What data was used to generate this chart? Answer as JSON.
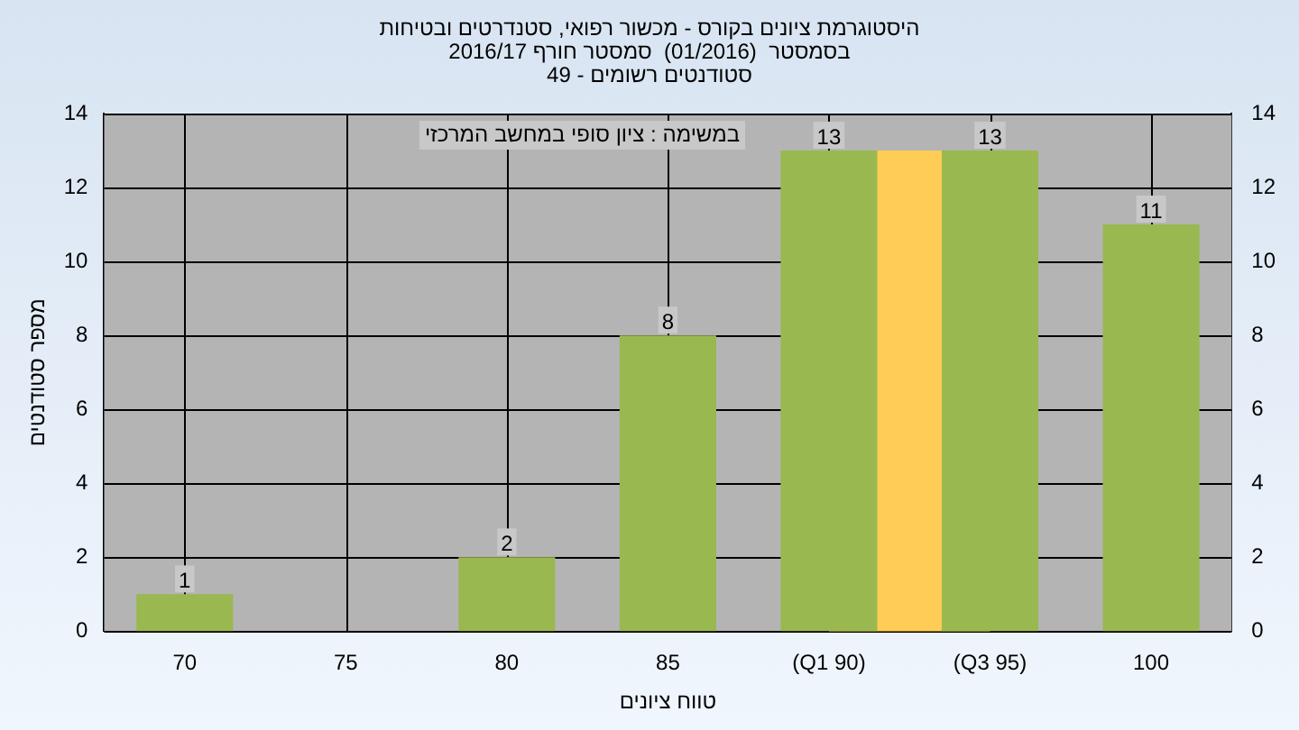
{
  "chart_data": {
    "type": "bar",
    "title": "היסטוגרמת ציונים בקורס - מכשור רפואי, סטנדרטים ובטיחות\nבסמסטר  (01/2016)  סמסטר חורף 2016/17\nסטודנטים רשומים - 49",
    "xlabel": "טווח ציונים",
    "ylabel": "מספר סטודנטים",
    "annotations": [
      "במשימה : ציון סופי במחשב המרכזי"
    ],
    "categories": [
      "70",
      "75",
      "80",
      "85",
      "(Q1 90)",
      "(Q3 95)",
      "100"
    ],
    "values": [
      1,
      0,
      2,
      8,
      13,
      13,
      11
    ],
    "value_labels": [
      "1",
      null,
      "2",
      "8",
      "13",
      "13",
      "11"
    ],
    "color": "#9ab850",
    "bands": [
      {
        "axis": "x",
        "from": "(Q1 90)",
        "to": "(Q3 95)",
        "color": "#ffcc55"
      }
    ],
    "ylim": [
      0,
      14
    ],
    "yticks": [
      0,
      2,
      4,
      6,
      8,
      10,
      12,
      14
    ],
    "y2lim": [
      0,
      14
    ],
    "y2ticks": [
      0,
      2,
      4,
      6,
      8,
      10,
      12,
      14
    ],
    "grid": true,
    "legend": false
  }
}
